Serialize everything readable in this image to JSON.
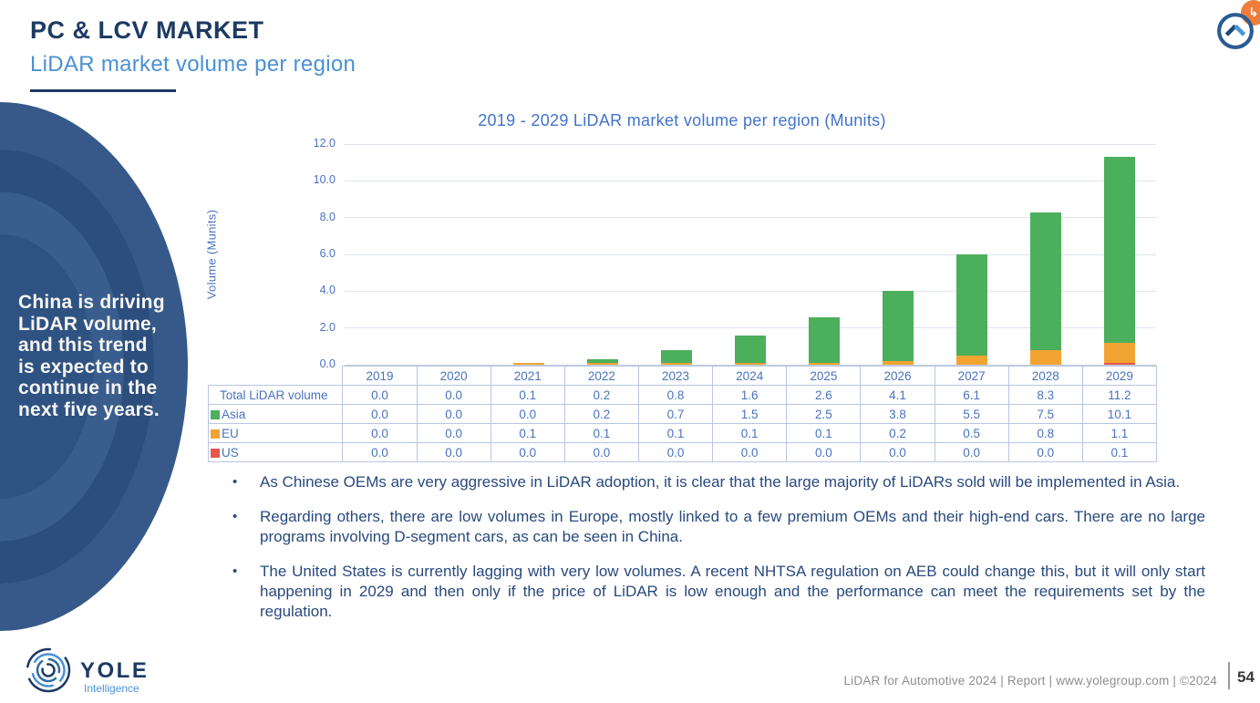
{
  "header": {
    "title": "PC & LCV MARKET",
    "subtitle": "LiDAR market volume per region"
  },
  "callout": "China is driving LiDAR volume, and this trend is expected to continue in the next five years.",
  "chart_data": {
    "type": "bar",
    "stacked": true,
    "title": "2019 - 2029 LiDAR market volume per region (Munits)",
    "xlabel": "",
    "ylabel": "Volume (Munits)",
    "ylim": [
      0,
      12
    ],
    "ytick_step": 2,
    "grid": true,
    "legend_position": "table-left",
    "categories": [
      "2019",
      "2020",
      "2021",
      "2022",
      "2023",
      "2024",
      "2025",
      "2026",
      "2027",
      "2028",
      "2029"
    ],
    "series": [
      {
        "name": "Asia",
        "color": "#4caf5c",
        "values": [
          0.0,
          0.0,
          0.0,
          0.2,
          0.7,
          1.5,
          2.5,
          3.8,
          5.5,
          7.5,
          10.1
        ]
      },
      {
        "name": "EU",
        "color": "#f2a432",
        "values": [
          0.0,
          0.0,
          0.1,
          0.1,
          0.1,
          0.1,
          0.1,
          0.2,
          0.5,
          0.8,
          1.1
        ]
      },
      {
        "name": "US",
        "color": "#e5564e",
        "values": [
          0.0,
          0.0,
          0.0,
          0.0,
          0.0,
          0.0,
          0.0,
          0.0,
          0.0,
          0.0,
          0.1
        ]
      }
    ],
    "stack_order_bottom_to_top": [
      "US",
      "EU",
      "Asia"
    ],
    "total_row": {
      "label": "Total LiDAR volume",
      "values": [
        0.0,
        0.0,
        0.1,
        0.2,
        0.8,
        1.6,
        2.6,
        4.1,
        6.1,
        8.3,
        11.2
      ]
    }
  },
  "bullets": [
    "As Chinese OEMs are very aggressive in LiDAR adoption, it is clear that the large majority of LiDARs sold will be implemented in Asia.",
    "Regarding others, there are low volumes in Europe, mostly linked to a few premium OEMs and their high-end cars. There are no large programs involving D-segment cars, as can be seen in China.",
    "The United States is currently lagging with very low volumes. A recent NHTSA regulation on AEB could change this, but it will only start happening in 2029 and then only if the price of LiDAR is low enough and the performance can meet the requirements set by the regulation."
  ],
  "footer": {
    "brand": "YOLE",
    "brand_sub": "Intelligence",
    "info": "LiDAR for Automotive 2024 | Report | www.yolegroup.com | ©2024",
    "page": "54"
  },
  "icons": {
    "scroll_top": "chevron-up-circle",
    "badge_glyph": "↳"
  },
  "colors": {
    "title_navy": "#1d3a63",
    "subtitle_blue": "#4a90d5",
    "chart_text_blue": "#4a72c0",
    "asia_green": "#4caf5c",
    "eu_orange": "#f2a432",
    "us_red": "#e5564e"
  }
}
